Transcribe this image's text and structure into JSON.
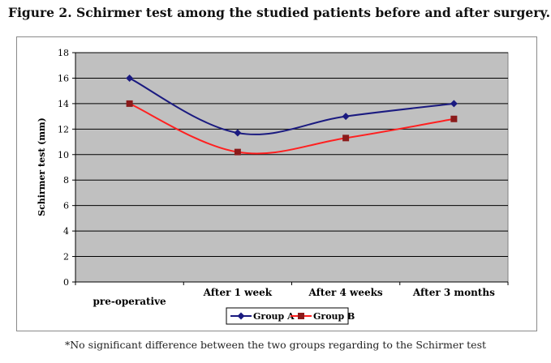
{
  "figure": {
    "title": "Figure 2. Schirmer test among the studied patients before and after surgery.",
    "footnote": "*No significant difference between the two groups regarding to the Schirmer test"
  },
  "chart_data": {
    "type": "line",
    "title": "",
    "xlabel": "",
    "ylabel": "Schirmer test (mm)",
    "categories": [
      "pre-operative",
      "After 1 week",
      "After 4 weeks",
      "After 3 months"
    ],
    "ylim": [
      0,
      18
    ],
    "yticks": [
      0,
      2,
      4,
      6,
      8,
      10,
      12,
      14,
      16,
      18
    ],
    "grid": true,
    "legend_position": "bottom",
    "series": [
      {
        "name": "Group A",
        "values": [
          16,
          11.7,
          13,
          14
        ],
        "color": "#1a1a80",
        "marker": "diamond"
      },
      {
        "name": "Group B",
        "values": [
          14,
          10.2,
          11.3,
          12.8
        ],
        "color": "#ff2020",
        "marker": "square",
        "marker_color": "#8b1a1a"
      }
    ]
  }
}
